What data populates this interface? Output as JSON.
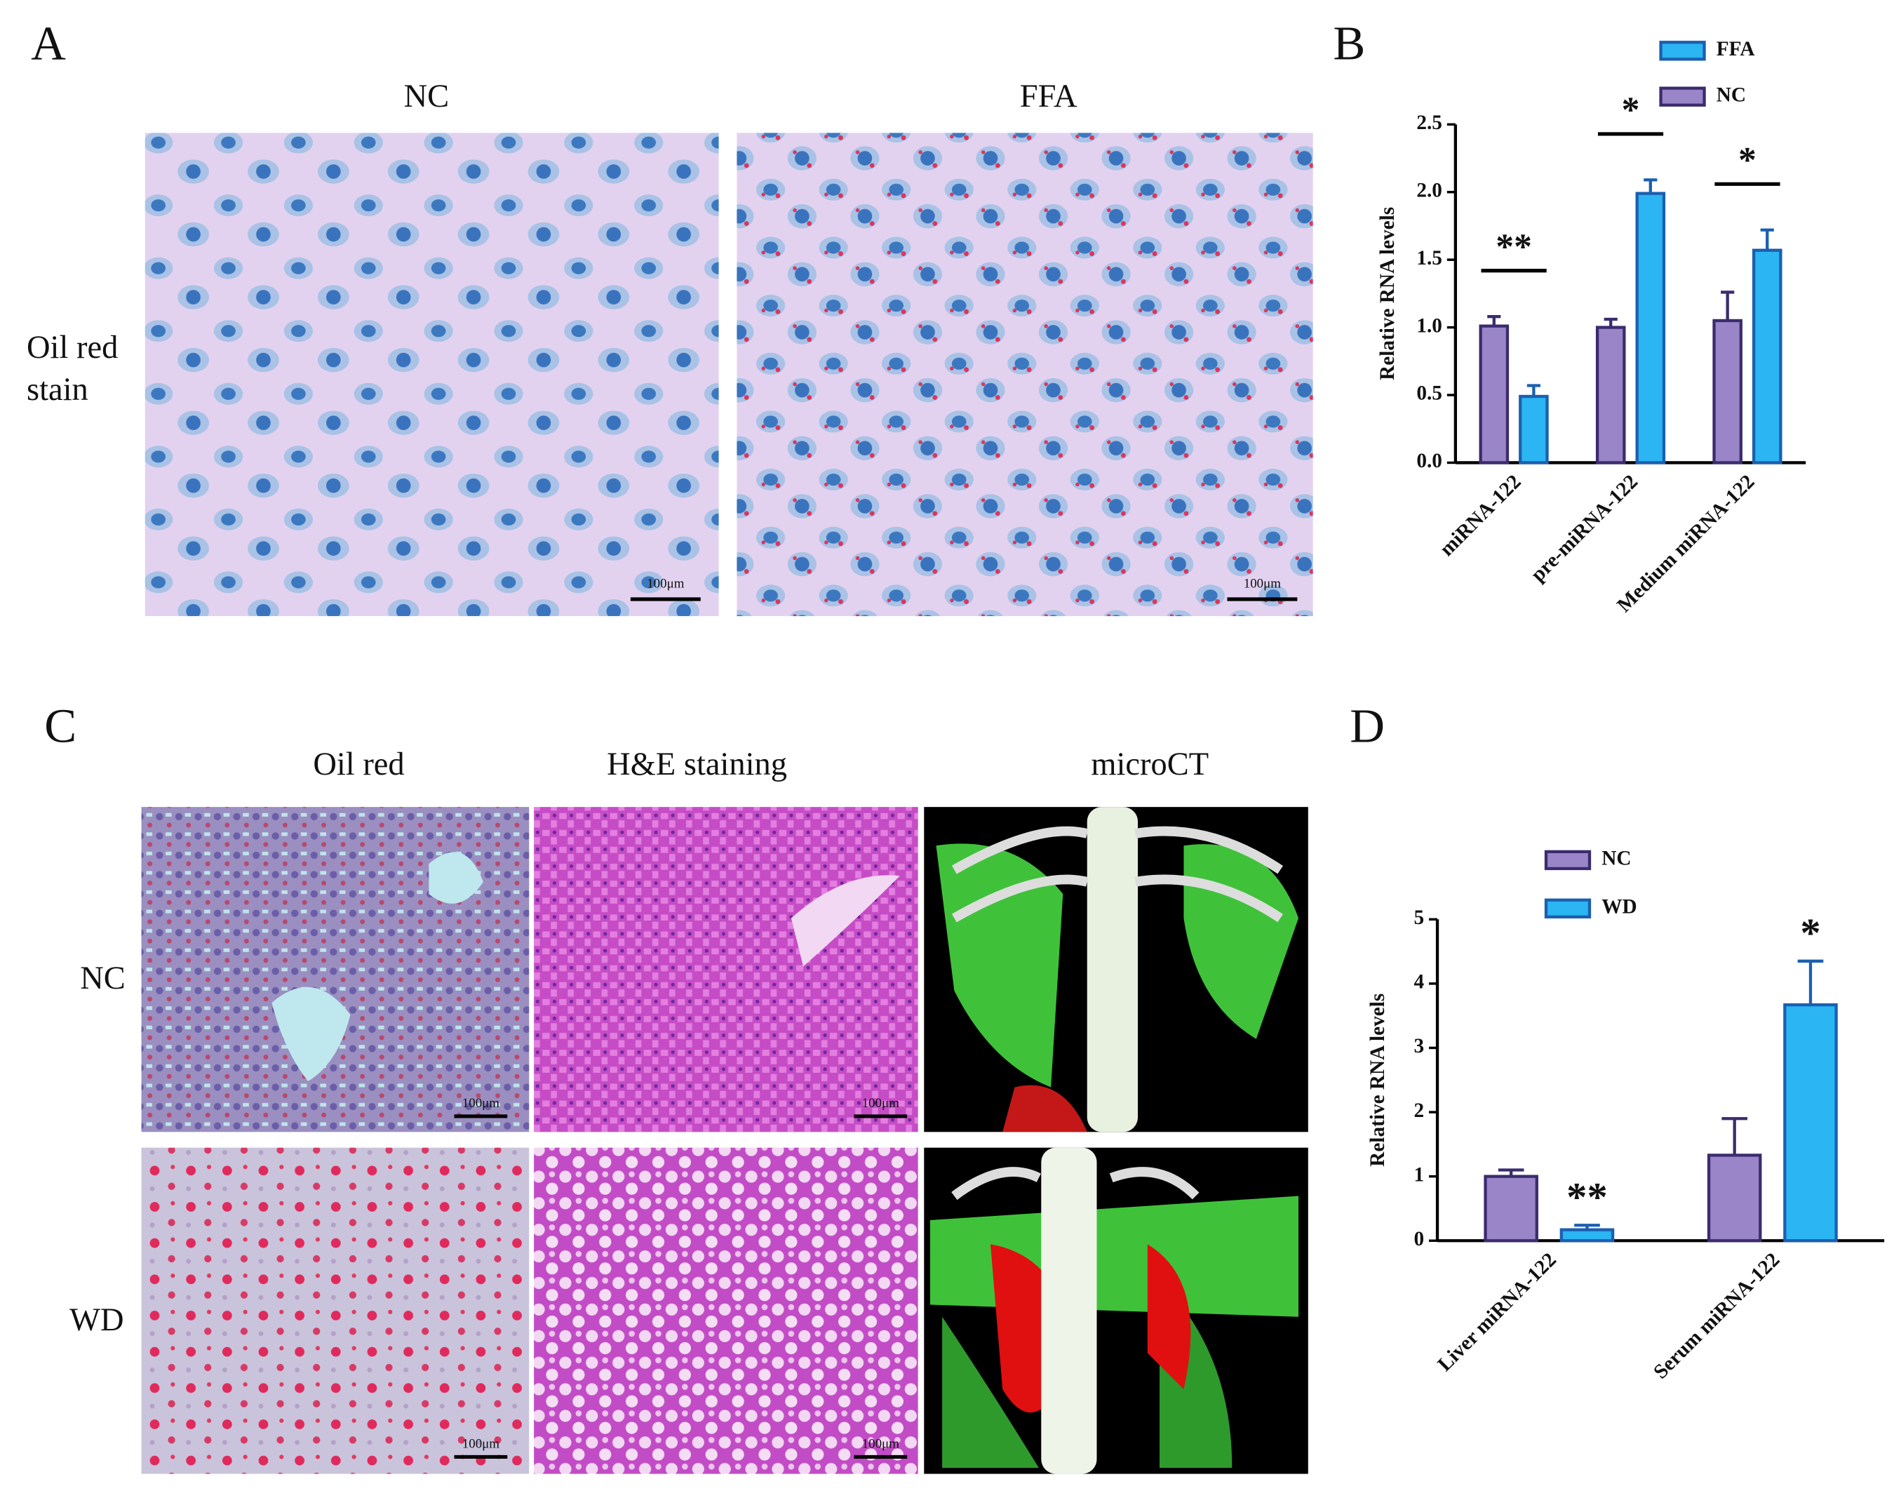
{
  "panel_labels": [
    "A",
    "B",
    "C",
    "D"
  ],
  "panel_a": {
    "columns": [
      "NC",
      "FFA"
    ],
    "row_label": [
      "Oil red",
      "stain"
    ],
    "scale_bars": [
      "100μm",
      "100μm"
    ]
  },
  "panel_c": {
    "columns": [
      "Oil red",
      "H&E staining",
      "microCT"
    ],
    "rows": [
      "NC",
      "WD"
    ],
    "scale_bars": [
      "100μm",
      "100μm",
      "100μm",
      "100μm"
    ]
  },
  "chart_data": [
    {
      "type": "bar",
      "y_label": "Relative RNA levels",
      "categories": [
        "miRNA-122",
        "pre-miRNA-122",
        "Medium miRNA-122"
      ],
      "series": [
        {
          "name": "NC",
          "color": "#9b85c9",
          "values": [
            1.01,
            1.0,
            1.05
          ],
          "error": [
            0.07,
            0.06,
            0.21
          ]
        },
        {
          "name": "FFA",
          "color": "#2bb5f2",
          "values": [
            0.49,
            1.99,
            1.57
          ],
          "error": [
            0.08,
            0.1,
            0.15
          ]
        }
      ],
      "legend_reversed": true,
      "significance": [
        "**",
        "*",
        "*"
      ],
      "ylim": [
        0,
        2.5
      ],
      "yticks": [
        {
          "value": 0,
          "label": "0.0"
        },
        0.5,
        {
          "value": 1,
          "label": "1.0"
        },
        1.5,
        {
          "value": 2,
          "label": "2.0"
        },
        2.5
      ]
    },
    {
      "type": "bar",
      "y_label": "Relative RNA levels",
      "categories": [
        "Liver miRNA-122",
        "Serum miRNA-122"
      ],
      "series": [
        {
          "name": "NC",
          "color": "#9b85c9",
          "values": [
            1.0,
            1.33
          ],
          "error": [
            0.1,
            0.57
          ]
        },
        {
          "name": "WD",
          "color": "#2bb5f2",
          "values": [
            0.17,
            3.67
          ],
          "error": [
            0.07,
            0.68
          ],
          "annotations": [
            "**",
            "*"
          ]
        }
      ],
      "ylim": [
        0,
        5
      ],
      "yticks": [
        0,
        1,
        2,
        3,
        4,
        5
      ]
    }
  ]
}
